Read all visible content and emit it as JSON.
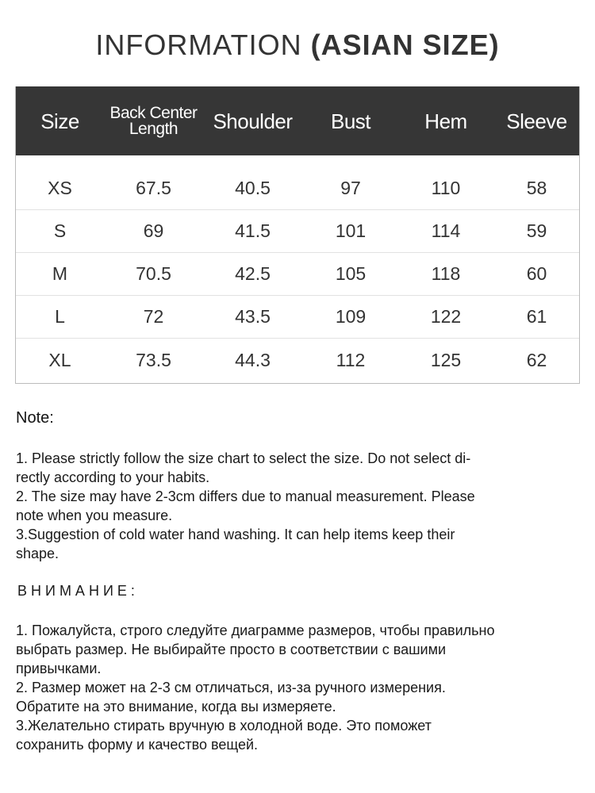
{
  "title": {
    "thin": "INFORMATION",
    "bold": "(ASIAN SIZE)"
  },
  "table": {
    "headers": [
      "Size",
      "Back Center Length",
      "Shoulder",
      "Bust",
      "Hem",
      "Sleeve"
    ],
    "header_back_line1": "Back Center",
    "header_back_line2": "Length",
    "rows": [
      [
        "XS",
        "67.5",
        "40.5",
        "97",
        "110",
        "58"
      ],
      [
        "S",
        "69",
        "41.5",
        "101",
        "114",
        "59"
      ],
      [
        "M",
        "70.5",
        "42.5",
        "105",
        "118",
        "60"
      ],
      [
        "L",
        "72",
        "43.5",
        "109",
        "122",
        "61"
      ],
      [
        "XL",
        "73.5",
        "44.3",
        "112",
        "125",
        "62"
      ]
    ]
  },
  "note": {
    "title": "Note:",
    "lines": [
      "1. Please strictly follow the size chart  to select the size. Do not select di-",
      "rectly according to your habits.",
      "2. The size may have 2-3cm differs due to manual measurement. Please",
      "note when you measure.",
      "3.Suggestion of cold water hand washing. It can help items keep their",
      "shape."
    ]
  },
  "ru_note": {
    "title": "ВНИМАНИЕ:",
    "lines": [
      "1. Пожалуйста, строго следуйте диаграмме размеров, чтобы правильно",
      "выбрать размер. Не выбирайте просто в соответствии с вашими",
      "привычками.",
      "2. Размер может на 2-3 см отличаться, из-за ручного измерения.",
      "Обратите на это внимание, когда вы измеряете.",
      "3.Желательно стирать вручную в холодной воде. Это поможет",
      "сохранить форму и качество вещей."
    ]
  },
  "colors": {
    "header_bg": "#363636",
    "header_text": "#ffffff"
  }
}
